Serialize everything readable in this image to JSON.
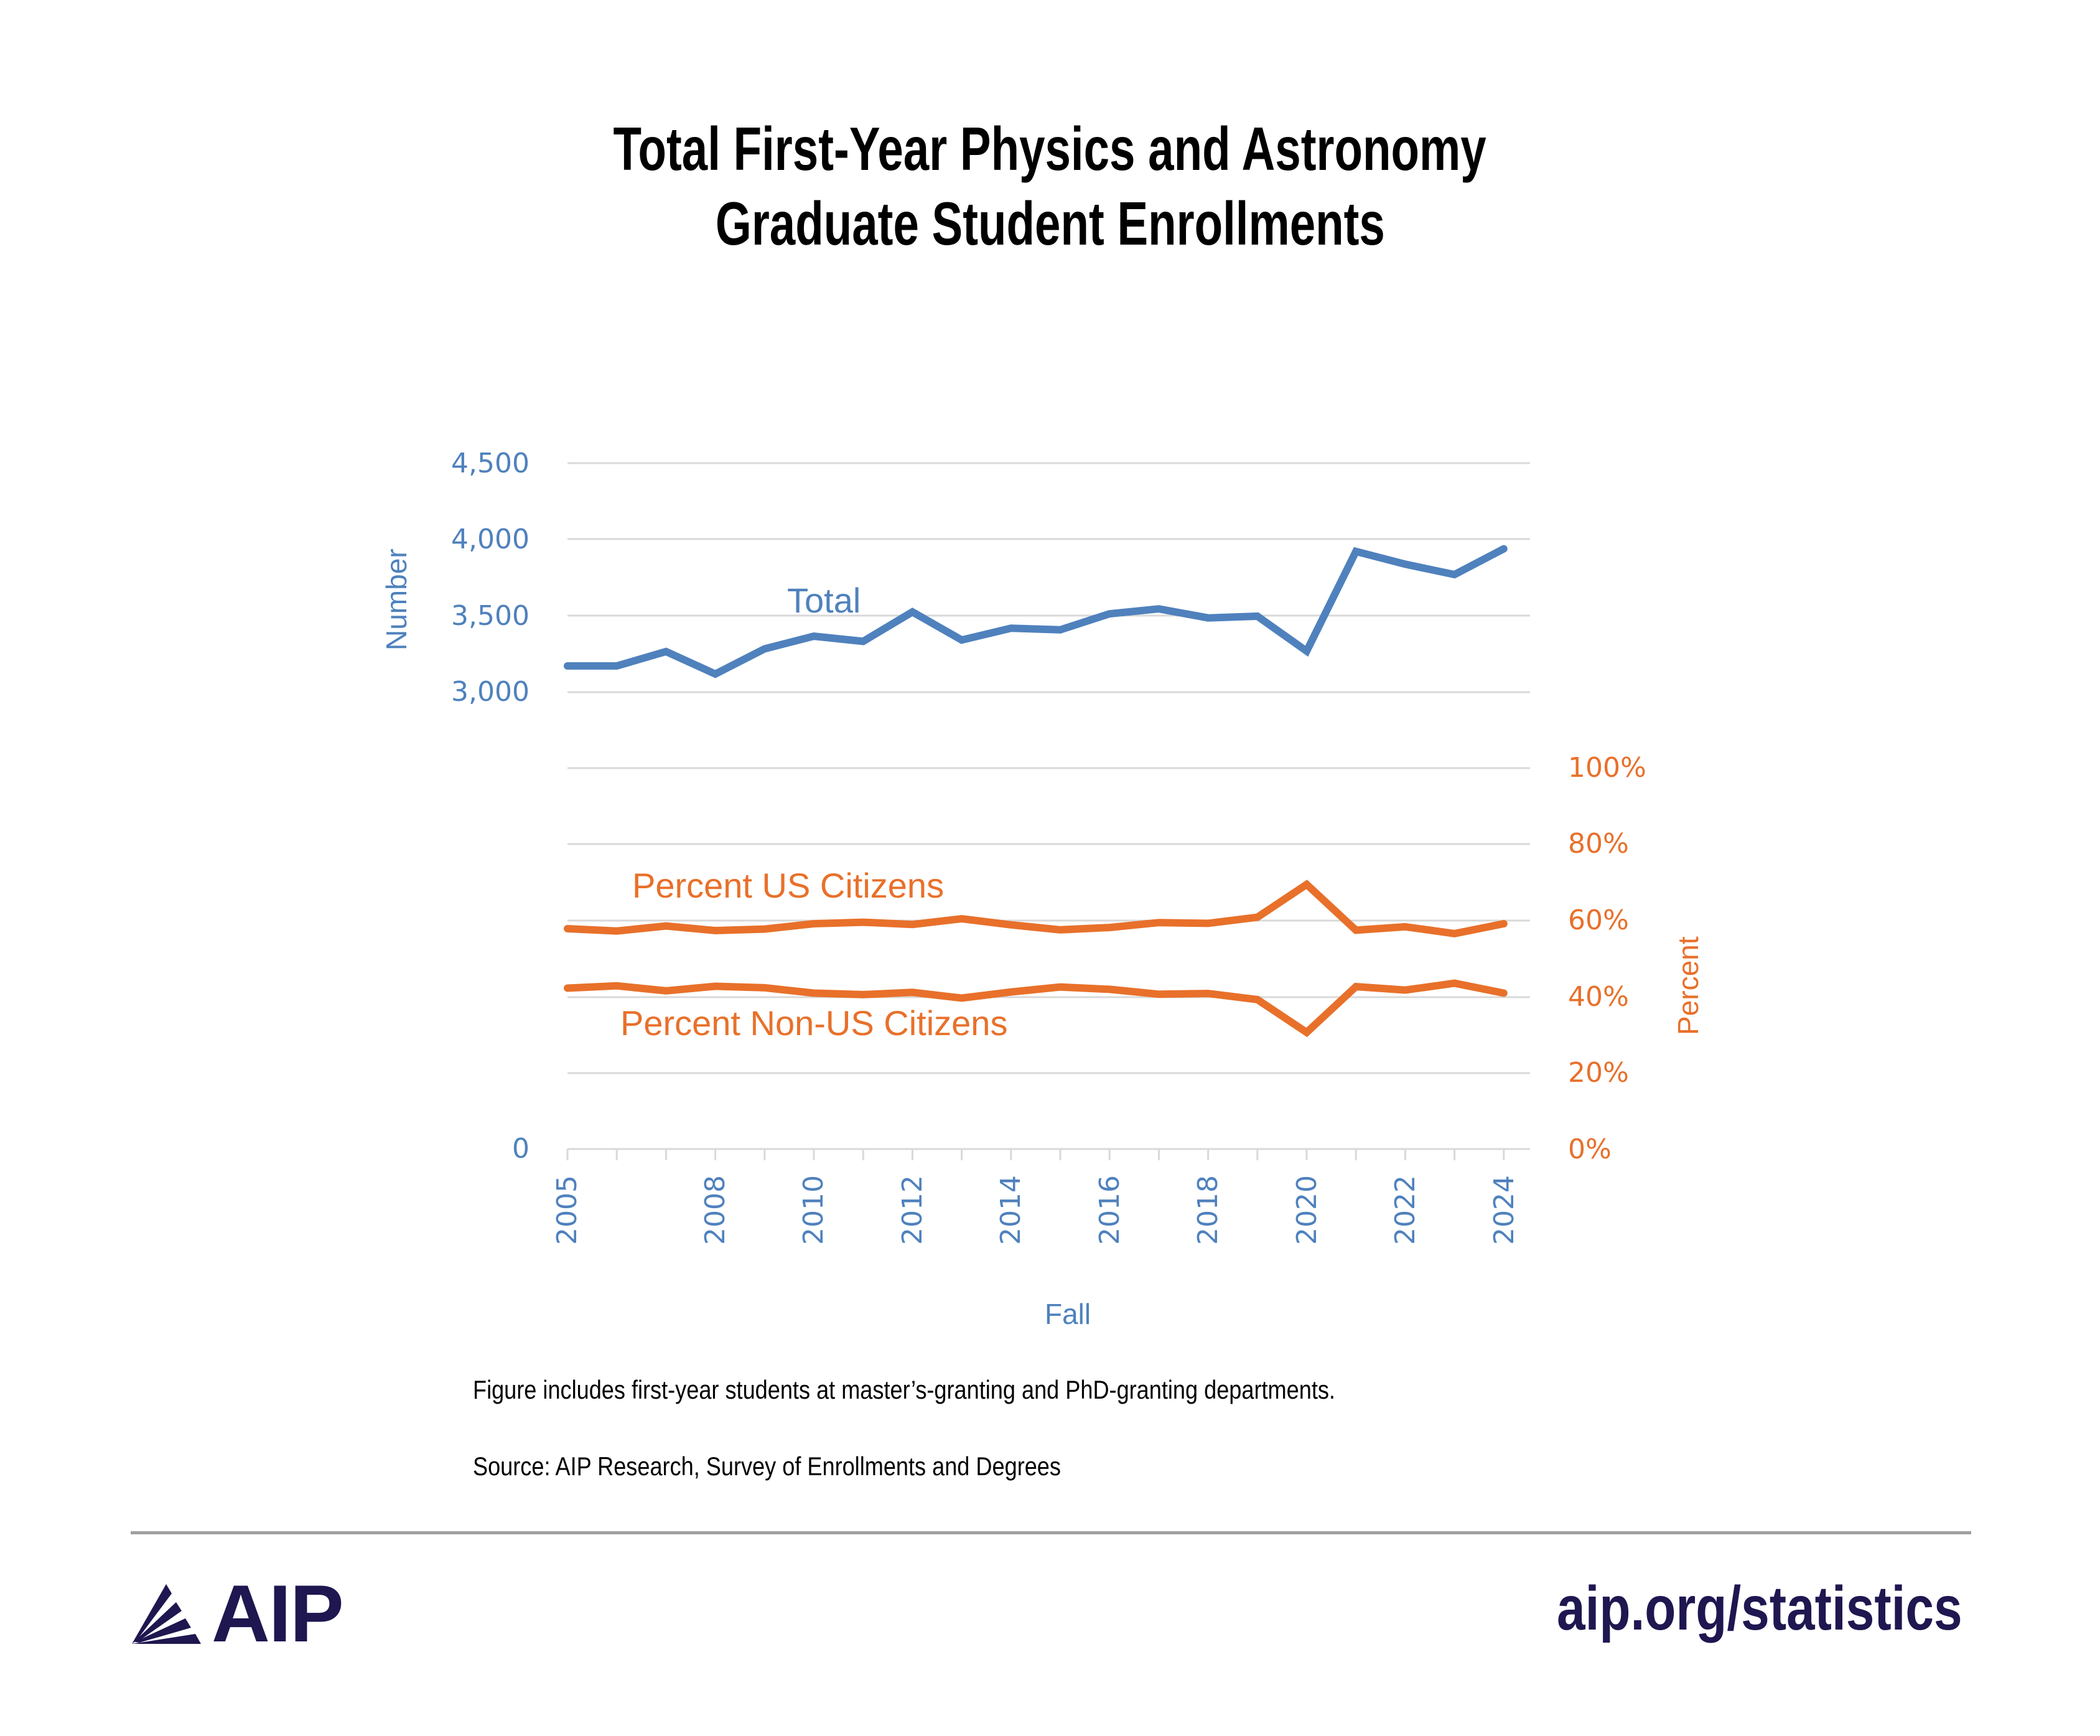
{
  "header": {
    "title_line1": "Total First-Year Physics and Astronomy",
    "title_line2": "Graduate Student Enrollments"
  },
  "colors": {
    "total": "#4F81BD",
    "percent": "#E8702A",
    "gridline": "#D9D9D9",
    "brand": "#1E1750",
    "divider": "#A0A0A0"
  },
  "axes": {
    "left_title": "Number",
    "right_title": "Percent",
    "x_title": "Fall",
    "left_ticks": [
      "4,500",
      "4,000",
      "3,500",
      "3,000",
      "0"
    ],
    "right_ticks": [
      "100%",
      "80%",
      "60%",
      "40%",
      "20%",
      "0%"
    ],
    "x_ticks": [
      "2005",
      "2008",
      "2010",
      "2012",
      "2014",
      "2016",
      "2018",
      "2020",
      "2022",
      "2024"
    ]
  },
  "labels": {
    "total": "Total",
    "us": "Percent US Citizens",
    "non_us": "Percent Non-US Citizens"
  },
  "notes": {
    "line1": "Figure includes first-year students at master’s-granting and PhD-granting departments.",
    "line2": "Source: AIP Research, Survey of Enrollments and Degrees"
  },
  "footer": {
    "logo_text": "AIP",
    "url": "aip.org/statistics"
  },
  "chart_data": {
    "type": "line",
    "title": "Total First-Year Physics and Astronomy Graduate Student Enrollments",
    "xlabel": "Fall",
    "ylabel": "Number",
    "ylabel_right": "Percent",
    "x": [
      2005,
      2006,
      2007,
      2008,
      2009,
      2010,
      2011,
      2012,
      2013,
      2014,
      2015,
      2016,
      2017,
      2018,
      2019,
      2020,
      2021,
      2022,
      2023,
      2024
    ],
    "series": [
      {
        "name": "Total",
        "axis": "left",
        "values": [
          3172,
          3172,
          3266,
          3119,
          3284,
          3367,
          3333,
          3526,
          3342,
          3419,
          3409,
          3514,
          3546,
          3487,
          3498,
          3269,
          3923,
          3839,
          3771,
          3940
        ]
      },
      {
        "name": "Percent US Citizens",
        "axis": "right",
        "values": [
          57.8,
          57.2,
          58.5,
          57.3,
          57.7,
          59.1,
          59.5,
          58.9,
          60.4,
          58.8,
          57.5,
          58.1,
          59.4,
          59.2,
          60.8,
          69.4,
          57.4,
          58.3,
          56.5,
          59.1
        ]
      },
      {
        "name": "Percent Non-US Citizens",
        "axis": "right",
        "values": [
          42.2,
          42.8,
          41.5,
          42.7,
          42.3,
          40.9,
          40.5,
          41.1,
          39.6,
          41.2,
          42.5,
          41.9,
          40.6,
          40.8,
          39.2,
          30.6,
          42.6,
          41.7,
          43.5,
          40.9
        ]
      }
    ],
    "ylim_left": [
      0,
      4500
    ],
    "ylim_left_visible_ticks": [
      0,
      3000,
      3500,
      4000,
      4500
    ],
    "ylim_right": [
      0,
      100
    ],
    "grid": true,
    "legend": "inline labels"
  }
}
